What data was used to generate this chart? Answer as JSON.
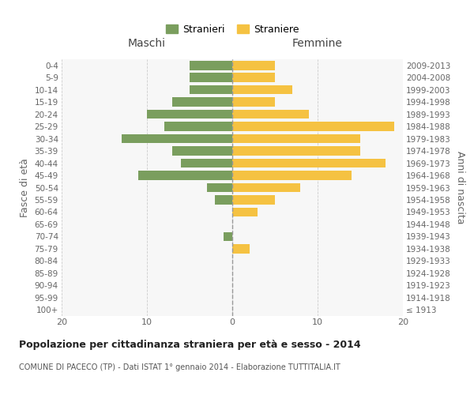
{
  "age_groups": [
    "100+",
    "95-99",
    "90-94",
    "85-89",
    "80-84",
    "75-79",
    "70-74",
    "65-69",
    "60-64",
    "55-59",
    "50-54",
    "45-49",
    "40-44",
    "35-39",
    "30-34",
    "25-29",
    "20-24",
    "15-19",
    "10-14",
    "5-9",
    "0-4"
  ],
  "birth_years": [
    "≤ 1913",
    "1914-1918",
    "1919-1923",
    "1924-1928",
    "1929-1933",
    "1934-1938",
    "1939-1943",
    "1944-1948",
    "1949-1953",
    "1954-1958",
    "1959-1963",
    "1964-1968",
    "1969-1973",
    "1974-1978",
    "1979-1983",
    "1984-1988",
    "1989-1993",
    "1994-1998",
    "1999-2003",
    "2004-2008",
    "2009-2013"
  ],
  "males": [
    0,
    0,
    0,
    0,
    0,
    0,
    1,
    0,
    0,
    2,
    3,
    11,
    6,
    7,
    13,
    8,
    10,
    7,
    5,
    5,
    5
  ],
  "females": [
    0,
    0,
    0,
    0,
    0,
    2,
    0,
    0,
    3,
    5,
    8,
    14,
    18,
    15,
    15,
    19,
    9,
    5,
    7,
    5,
    5
  ],
  "male_color": "#7a9e5e",
  "female_color": "#f5c242",
  "background_color": "#ffffff",
  "grid_color": "#cccccc",
  "title": "Popolazione per cittadinanza straniera per età e sesso - 2014",
  "subtitle": "COMUNE DI PACECO (TP) - Dati ISTAT 1° gennaio 2014 - Elaborazione TUTTITALIA.IT",
  "xlabel_left": "Maschi",
  "xlabel_right": "Femmine",
  "ylabel_left": "Fasce di età",
  "ylabel_right": "Anni di nascita",
  "legend_male": "Stranieri",
  "legend_female": "Straniere",
  "xlim": 20,
  "bar_height": 0.75
}
